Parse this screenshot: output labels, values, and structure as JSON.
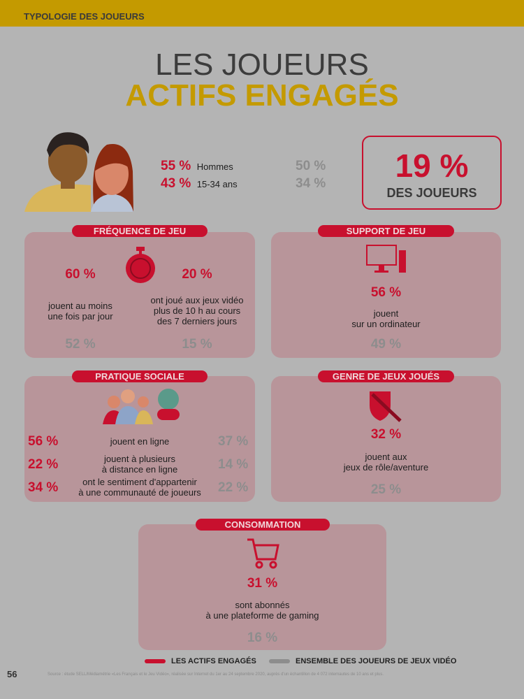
{
  "header": {
    "section": "TYPOLOGIE DES JOUEURS"
  },
  "title": {
    "line1": "LES JOUEURS",
    "line2": "ACTIFS ENGAGÉS"
  },
  "demographics": [
    {
      "value": "55 %",
      "label": "Hommes",
      "overall": "50 %"
    },
    {
      "value": "43 %",
      "label": "15-34 ans",
      "overall": "34 %"
    }
  ],
  "share": {
    "value": "19 %",
    "label": "DES JOUEURS"
  },
  "frequence": {
    "title": "FRÉQUENCE DE JEU",
    "icon": "stopwatch-icon",
    "items": [
      {
        "value": "60 %",
        "text": "jouent au moins\nune fois par jour",
        "overall": "52 %"
      },
      {
        "value": "20 %",
        "text": "ont joué aux jeux vidéo\nplus de 10 h au cours\ndes 7 derniers jours",
        "overall": "15 %"
      }
    ]
  },
  "support": {
    "title": "SUPPORT DE JEU",
    "icon": "computer-icon",
    "value": "56 %",
    "text": "jouent\nsur un ordinateur",
    "overall": "49 %"
  },
  "sociale": {
    "title": "PRATIQUE SOCIALE",
    "icon": "people-globe-gamepad-icon",
    "items": [
      {
        "value": "56 %",
        "text": "jouent en ligne",
        "overall": "37 %"
      },
      {
        "value": "22 %",
        "text": "jouent à plusieurs\nà distance en ligne",
        "overall": "14 %"
      },
      {
        "value": "34 %",
        "text": "ont le sentiment d'appartenir\nà une communauté de joueurs",
        "overall": "22 %"
      }
    ]
  },
  "genre": {
    "title": "GENRE DE JEUX JOUÉS",
    "icon": "shield-sword-icon",
    "value": "32 %",
    "text": "jouent aux\njeux de rôle/aventure",
    "overall": "25 %"
  },
  "consommation": {
    "title": "CONSOMMATION",
    "icon": "cart-icon",
    "value": "31 %",
    "text": "sont abonnés\nà une plateforme de gaming",
    "overall": "16 %"
  },
  "legend": [
    {
      "label": "LES ACTIFS ENGAGÉS",
      "color": "#c8102e"
    },
    {
      "label": "ENSEMBLE DES JOUEURS DE JEUX VIDÉO",
      "color": "#8d8d8d"
    }
  ],
  "footer": {
    "page": "56",
    "source": "Source : étude SELL/Médiamétrie «Les Français et le Jeu Vidéo», réalisée sur Internet du 1er au 24 septembre 2020, auprès d'un échantillon de 4 072 internautes de 10 ans et plus."
  },
  "colors": {
    "accent_red": "#c8102e",
    "gold": "#c49a00",
    "gray": "#8d8d8d",
    "panel": "#b8959a"
  }
}
